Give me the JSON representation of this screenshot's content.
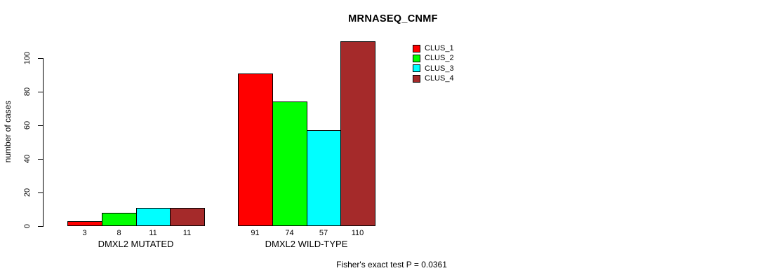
{
  "chart_data": {
    "type": "bar",
    "title": "MRNASEQ_CNMF",
    "ylabel": "number of cases",
    "xlabel": "",
    "categories": [
      "DMXL2 MUTATED",
      "DMXL2 WILD-TYPE"
    ],
    "series": [
      {
        "name": "CLUS_1",
        "color": "#ff0000",
        "values": [
          3,
          91
        ]
      },
      {
        "name": "CLUS_2",
        "color": "#00ff00",
        "values": [
          8,
          74
        ]
      },
      {
        "name": "CLUS_3",
        "color": "#00ffff",
        "values": [
          11,
          57
        ]
      },
      {
        "name": "CLUS_4",
        "color": "#a52a2a",
        "values": [
          11,
          110
        ]
      }
    ],
    "yticks": [
      0,
      20,
      40,
      60,
      80,
      100
    ],
    "ylim": [
      0,
      110
    ],
    "grid": false,
    "bar_value_labels_shown": true,
    "legend_position": "top-right",
    "annotation": "Fisher's exact test P = 0.0361"
  }
}
